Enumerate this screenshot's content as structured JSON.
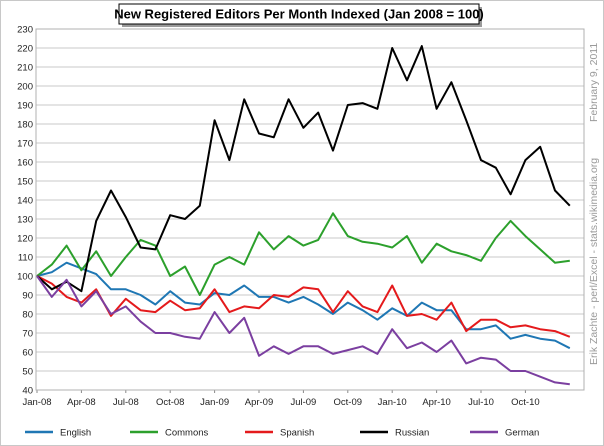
{
  "chart_data": {
    "type": "line",
    "title": "New Registered Editors Per Month Indexed  (Jan 2008 = 100)",
    "ylim": [
      40,
      230
    ],
    "yticks": [
      40,
      50,
      60,
      70,
      80,
      90,
      100,
      110,
      120,
      130,
      140,
      150,
      160,
      170,
      180,
      190,
      200,
      210,
      220,
      230
    ],
    "x_tick_labels": [
      "Jan-08",
      "Apr-08",
      "Jul-08",
      "Oct-08",
      "Jan-09",
      "Apr-09",
      "Jul-09",
      "Oct-09",
      "Jan-10",
      "Apr-10",
      "Jul-10",
      "Oct-10"
    ],
    "x_tick_index_step": 3,
    "categories": [
      "Jan-08",
      "Feb-08",
      "Mar-08",
      "Apr-08",
      "May-08",
      "Jun-08",
      "Jul-08",
      "Aug-08",
      "Sep-08",
      "Oct-08",
      "Nov-08",
      "Dec-08",
      "Jan-09",
      "Feb-09",
      "Mar-09",
      "Apr-09",
      "May-09",
      "Jun-09",
      "Jul-09",
      "Aug-09",
      "Sep-09",
      "Oct-09",
      "Nov-09",
      "Dec-09",
      "Jan-10",
      "Feb-10",
      "Mar-10",
      "Apr-10",
      "May-10",
      "Jun-10",
      "Jul-10",
      "Aug-10",
      "Sep-10",
      "Oct-10",
      "Nov-10",
      "Dec-10",
      "Jan-11"
    ],
    "series": [
      {
        "name": "English",
        "color": "#1f77b4",
        "values": [
          100,
          102,
          107,
          104,
          101,
          93,
          93,
          90,
          85,
          92,
          86,
          85,
          91,
          90,
          95,
          89,
          89,
          86,
          89,
          85,
          80,
          86,
          82,
          77,
          83,
          79,
          86,
          82,
          82,
          72,
          72,
          74,
          67,
          69,
          67,
          66,
          62
        ]
      },
      {
        "name": "Commons",
        "color": "#2ca02c",
        "values": [
          100,
          106,
          116,
          103,
          113,
          100,
          110,
          119,
          116,
          100,
          105,
          90,
          106,
          110,
          106,
          123,
          114,
          121,
          116,
          119,
          133,
          121,
          118,
          117,
          115,
          121,
          107,
          117,
          113,
          111,
          108,
          120,
          129,
          121,
          114,
          107,
          108
        ]
      },
      {
        "name": "Spanish",
        "color": "#e41a1c",
        "values": [
          100,
          96,
          89,
          86,
          93,
          79,
          88,
          82,
          81,
          87,
          82,
          83,
          93,
          81,
          84,
          83,
          90,
          89,
          94,
          93,
          81,
          92,
          84,
          81,
          95,
          79,
          80,
          77,
          86,
          71,
          77,
          77,
          73,
          74,
          72,
          71,
          68
        ]
      },
      {
        "name": "Russian",
        "color": "#000000",
        "values": [
          100,
          93,
          97,
          92,
          129,
          145,
          131,
          115,
          114,
          132,
          130,
          137,
          182,
          161,
          193,
          175,
          173,
          193,
          178,
          186,
          166,
          190,
          191,
          188,
          220,
          203,
          221,
          188,
          202,
          182,
          161,
          157,
          143,
          161,
          168,
          145,
          137
        ]
      },
      {
        "name": "German",
        "color": "#7b3fa0",
        "values": [
          100,
          89,
          98,
          84,
          92,
          80,
          84,
          76,
          70,
          70,
          68,
          67,
          81,
          70,
          78,
          58,
          63,
          59,
          63,
          63,
          59,
          61,
          63,
          59,
          72,
          62,
          65,
          60,
          66,
          54,
          57,
          56,
          50,
          50,
          47,
          44,
          43
        ]
      }
    ],
    "side_annotation_1": "Erik Zachte - perl/Excel - stats.wikimedia.org",
    "side_annotation_2": "February 9, 2011"
  }
}
